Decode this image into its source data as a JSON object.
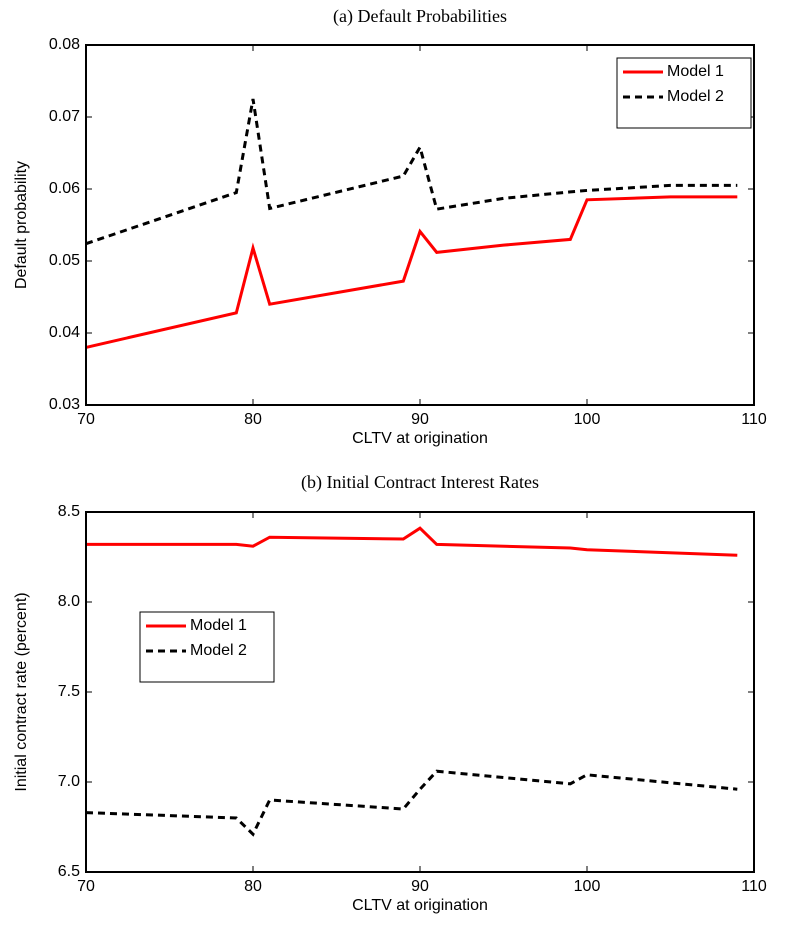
{
  "chart_data": [
    {
      "type": "line",
      "title": "(a) Default Probabilities",
      "xlabel": "CLTV at origination",
      "ylabel": "Default probability",
      "x": [
        70,
        79,
        80,
        81,
        89,
        90,
        91,
        95,
        99,
        100,
        105,
        109
      ],
      "series": [
        {
          "name": "Model 1",
          "color": "#ff0000",
          "linestyle": "solid",
          "values": [
            0.038,
            0.0428,
            0.0518,
            0.044,
            0.0472,
            0.0541,
            0.0512,
            0.0522,
            0.053,
            0.0585,
            0.0589,
            0.0589
          ]
        },
        {
          "name": "Model 2",
          "color": "#000000",
          "linestyle": "dashed",
          "values": [
            0.0524,
            0.0595,
            0.0725,
            0.0573,
            0.0618,
            0.0658,
            0.0572,
            0.0587,
            0.0596,
            0.0598,
            0.0605,
            0.0605
          ]
        }
      ],
      "xlim": [
        70,
        110
      ],
      "xticks": [
        70,
        80,
        90,
        100,
        110
      ],
      "ylim": [
        0.03,
        0.08
      ],
      "yticks": [
        0.03,
        0.04,
        0.05,
        0.06,
        0.07,
        0.08
      ],
      "legend": "upper right"
    },
    {
      "type": "line",
      "title": "(b) Initial Contract Interest Rates",
      "xlabel": "CLTV at origination",
      "ylabel": "Initial contract rate (percent)",
      "x": [
        70,
        79,
        80,
        81,
        89,
        90,
        91,
        99,
        100,
        109
      ],
      "series": [
        {
          "name": "Model 1",
          "color": "#ff0000",
          "linestyle": "solid",
          "values": [
            8.32,
            8.32,
            8.31,
            8.36,
            8.35,
            8.41,
            8.32,
            8.3,
            8.29,
            8.26
          ]
        },
        {
          "name": "Model 2",
          "color": "#000000",
          "linestyle": "dashed",
          "values": [
            6.83,
            6.8,
            6.71,
            6.9,
            6.85,
            6.96,
            7.06,
            6.99,
            7.04,
            6.96
          ]
        }
      ],
      "xlim": [
        70,
        110
      ],
      "xticks": [
        70,
        80,
        90,
        100,
        110
      ],
      "ylim": [
        6.5,
        8.5
      ],
      "yticks": [
        6.5,
        {
          "value": 7,
          "label": "7.0"
        },
        7.5,
        {
          "value": 8,
          "label": "8.0"
        },
        8.5
      ],
      "legend": "center left"
    }
  ]
}
